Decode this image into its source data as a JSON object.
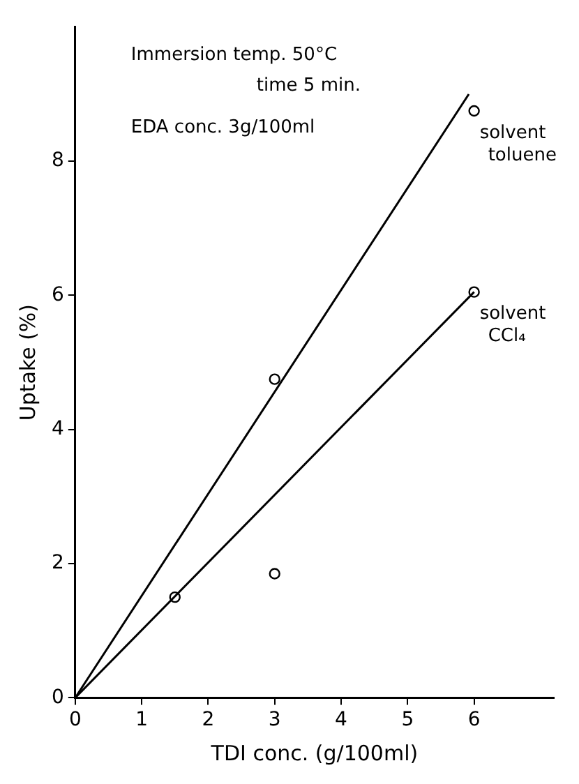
{
  "chart_data": {
    "type": "scatter",
    "xlabel": "TDI conc. (g/100ml)",
    "ylabel": "Uptake (%)",
    "annotations": [
      "Immersion temp. 50°C",
      "time 5 min.",
      "EDA conc. 3g/100ml"
    ],
    "xlim": [
      0,
      7.2
    ],
    "xticks": [
      0,
      1,
      2,
      3,
      4,
      5,
      6
    ],
    "ylim": [
      0,
      10
    ],
    "yticks": [
      0,
      2,
      4,
      6,
      8
    ],
    "grid": false,
    "legend": false,
    "marker": "circle",
    "series": [
      {
        "name": "solvent toluene",
        "type": "scatter",
        "color": "#000000",
        "x": [
          3,
          6
        ],
        "values": [
          4.75,
          8.75
        ]
      },
      {
        "name": "solvent CCl₄",
        "type": "scatter",
        "color": "#000000",
        "x": [
          1.5,
          3,
          6
        ],
        "values": [
          1.5,
          1.85,
          6.05
        ]
      },
      {
        "type": "line",
        "color": "#000000",
        "marker": "none",
        "line_style": "solid",
        "x": [
          0,
          5.92
        ],
        "values": [
          0,
          9.0
        ]
      },
      {
        "type": "line",
        "color": "#000000",
        "marker": "none",
        "line_style": "solid",
        "x": [
          0,
          6
        ],
        "values": [
          0,
          6.05
        ]
      }
    ]
  }
}
